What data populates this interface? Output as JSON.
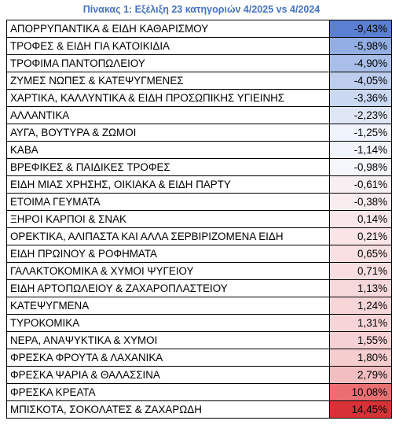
{
  "title": "Πίνακας 1: Εξέλιξη 23 κατηγοριών 4/2025 vs 4/2024",
  "rows": [
    {
      "category": "ΑΠΟΡΡΥΠΑΝΤΙΚΑ & ΕΙΔΗ ΚΑΘΑΡΙΣΜΟΥ",
      "value": "-9,43%",
      "color": "#5b7fd3"
    },
    {
      "category": "ΤΡΟΦΕΣ & ΕΙΔΗ ΓΙΑ ΚΑΤΟΙΚΙΔΙΑ",
      "value": "-5,98%",
      "color": "#93aee3"
    },
    {
      "category": "ΤΡΟΦΙΜΑ ΠΑΝΤΟΠΩΛΕΙΟΥ",
      "value": "-4,90%",
      "color": "#a9bfea"
    },
    {
      "category": "ΖΥΜΕΣ ΝΩΠΕΣ & ΚΑΤΕΨΥΓΜΕΝΕΣ",
      "value": "-4,05%",
      "color": "#bccdee"
    },
    {
      "category": "ΧΑΡΤΙΚΑ, ΚΑΛΛΥΝΤΙΚΑ & ΕΙΔΗ ΠΡΟΣΩΠΙΚΗΣ ΥΓΙΕΙΝΗΣ",
      "value": "-3,36%",
      "color": "#cad8f2"
    },
    {
      "category": "ΑΛΛΑΝΤΙΚΑ",
      "value": "-2,23%",
      "color": "#dfe7f7"
    },
    {
      "category": "ΑΥΓΑ, ΒΟΥΤΥΡΑ & ΖΩΜΟΙ",
      "value": "-1,25%",
      "color": "#eff3fb"
    },
    {
      "category": "ΚΑΒΑ",
      "value": "-1,14%",
      "color": "#f1f4fb"
    },
    {
      "category": "ΒΡΕΦΙΚΕΣ & ΠΑΙΔΙΚΕΣ ΤΡΟΦΕΣ",
      "value": "-0,98%",
      "color": "#f4f6fc"
    },
    {
      "category": "ΕΙΔΗ ΜΙΑΣ ΧΡΗΣΗΣ, ΟΙΚΙΑΚΑ & ΕΙΔΗ ΠΑΡΤΥ",
      "value": "-0,61%",
      "color": "#f8eff2"
    },
    {
      "category": "ΕΤΟΙΜΑ ΓΕΥΜΑΤΑ",
      "value": "-0,38%",
      "color": "#f9ecee"
    },
    {
      "category": "ΞΗΡΟΙ ΚΑΡΠΟΙ & ΣΝΑΚ",
      "value": "0,14%",
      "color": "#f9e6e8"
    },
    {
      "category": "ΟΡΕΚΤΙΚΑ, ΑΛΙΠΑΣΤΑ ΚΑΙ ΑΛΛΑ ΣΕΡΒΙΡΙΖΟΜΕΝΑ ΕΙΔΗ",
      "value": "0,21%",
      "color": "#f9e4e6"
    },
    {
      "category": "ΕΙΔΗ ΠΡΩΙΝΟΥ & ΡΟΦΗΜΑΤΑ",
      "value": "0,65%",
      "color": "#f8dfe1"
    },
    {
      "category": "ΓΑΛΑΚΤΟΚΟΜΙΚΑ & ΧΥΜΟΙ ΨΥΓΕΙΟΥ",
      "value": "0,71%",
      "color": "#f8dee0"
    },
    {
      "category": "ΕΙΔΗ ΑΡΤΟΠΩΛΕΙΟΥ & ΖΑΧΑΡΟΠΛΑΣΤΕΙΟΥ",
      "value": "1,13%",
      "color": "#f7d8da"
    },
    {
      "category": "ΚΑΤΕΨΥΓΜΕΝΑ",
      "value": "1,24%",
      "color": "#f7d6d8"
    },
    {
      "category": "ΤΥΡΟΚΟΜΙΚΑ",
      "value": "1,31%",
      "color": "#f7d5d7"
    },
    {
      "category": "ΝΕΡΑ, ΑΝΑΨΥΚΤΙΚΑ & ΧΥΜΟΙ",
      "value": "1,55%",
      "color": "#f6d1d3"
    },
    {
      "category": "ΦΡΕΣΚΑ ΦΡΟΥΤΑ & ΛΑΧΑΝΙΚΑ",
      "value": "1,80%",
      "color": "#f5cdcf"
    },
    {
      "category": "ΦΡΕΣΚΑ ΨΑΡΙΑ & ΘΑΛΑΣΣΙΝΑ",
      "value": "2,79%",
      "color": "#f3bec1"
    },
    {
      "category": "ΦΡΕΣΚΑ ΚΡΕΑΤΑ",
      "value": "10,08%",
      "color": "#ea6f73"
    },
    {
      "category": "ΜΠΙΣΚΟΤΑ, ΣΟΚΟΛΑΤΕΣ & ΖΑΧΑΡΩΔΗ",
      "value": "14,45%",
      "color": "#d83237"
    }
  ]
}
